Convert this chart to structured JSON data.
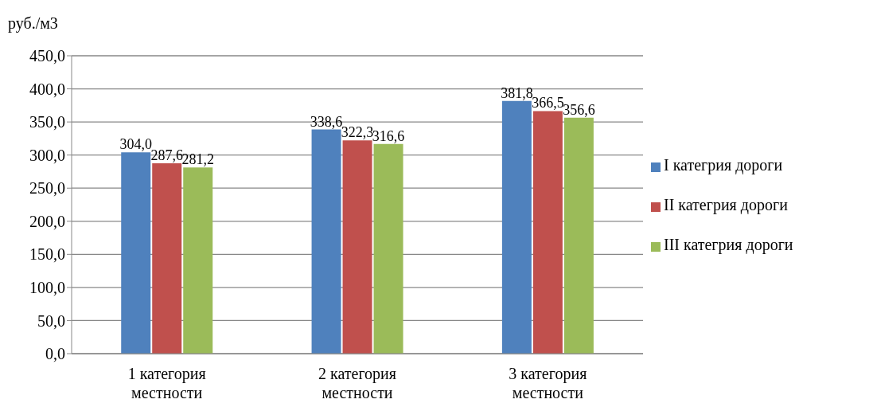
{
  "chart_data": {
    "type": "bar",
    "ylabel": "руб./м3",
    "categories": [
      "1 категория местности",
      "2 категория местности",
      "3 категория местности"
    ],
    "series": [
      {
        "name": "I категрия дороги",
        "color": "#4f81bd",
        "values": [
          304.0,
          338.6,
          381.8
        ],
        "value_labels": [
          "304,0",
          "338,6",
          "381,8"
        ]
      },
      {
        "name": "II категрия дороги",
        "color": "#c0504d",
        "values": [
          287.6,
          322.3,
          366.5
        ],
        "value_labels": [
          "287,6",
          "322,3",
          "366,5"
        ]
      },
      {
        "name": "III категрия дороги",
        "color": "#9bbb59",
        "values": [
          281.2,
          316.6,
          356.6
        ],
        "value_labels": [
          "281,2",
          "316,6",
          "356,6"
        ]
      }
    ],
    "ylim": [
      0,
      450
    ],
    "yticks": [
      {
        "value": 0,
        "label": "0,0"
      },
      {
        "value": 50,
        "label": "50,0"
      },
      {
        "value": 100,
        "label": "100,0"
      },
      {
        "value": 150,
        "label": "150,0"
      },
      {
        "value": 200,
        "label": "200,0"
      },
      {
        "value": 250,
        "label": "250,0"
      },
      {
        "value": 300,
        "label": "300,0"
      },
      {
        "value": 350,
        "label": "350,0"
      },
      {
        "value": 400,
        "label": "400,0"
      },
      {
        "value": 450,
        "label": "450,0"
      }
    ],
    "grid": "y",
    "legend": "right"
  }
}
